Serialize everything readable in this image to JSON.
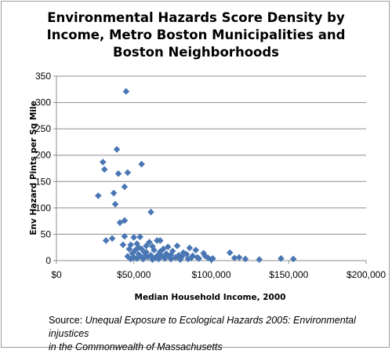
{
  "chart_data": {
    "type": "scatter",
    "title_lines": [
      "Environmental Hazards Score Density by",
      "Income, Metro Boston Municipalities and",
      "Boston Neighborhoods"
    ],
    "xlabel": "Median Household Income, 2000",
    "ylabel": "Env Hazard Pints per Sq Mile",
    "xlim": [
      0,
      200000
    ],
    "ylim": [
      0,
      350
    ],
    "x_ticks": [
      0,
      50000,
      100000,
      150000,
      200000
    ],
    "x_tick_labels": [
      "$0",
      "$50,000",
      "$100,000",
      "$150,000",
      "$200,000"
    ],
    "y_ticks": [
      0,
      50,
      100,
      150,
      200,
      250,
      300,
      350
    ],
    "y_tick_labels": [
      "0",
      "50",
      "100",
      "150",
      "200",
      "250",
      "300",
      "350"
    ],
    "grid": "horizontal",
    "marker_color": "#4a77b4",
    "points": [
      [
        45000,
        321
      ],
      [
        39000,
        211
      ],
      [
        30000,
        187
      ],
      [
        55000,
        183
      ],
      [
        31000,
        173
      ],
      [
        46000,
        167
      ],
      [
        40000,
        165
      ],
      [
        44000,
        140
      ],
      [
        37000,
        128
      ],
      [
        27000,
        123
      ],
      [
        38000,
        107
      ],
      [
        61000,
        92
      ],
      [
        44000,
        76
      ],
      [
        41000,
        72
      ],
      [
        44000,
        46
      ],
      [
        36000,
        42
      ],
      [
        32000,
        38
      ],
      [
        54000,
        45
      ],
      [
        50000,
        44
      ],
      [
        65000,
        38
      ],
      [
        60000,
        35
      ],
      [
        67000,
        38
      ],
      [
        48000,
        30
      ],
      [
        52000,
        32
      ],
      [
        43000,
        30
      ],
      [
        58000,
        28
      ],
      [
        62000,
        27
      ],
      [
        72000,
        26
      ],
      [
        78000,
        28
      ],
      [
        86000,
        24
      ],
      [
        47000,
        22
      ],
      [
        51000,
        20
      ],
      [
        55000,
        22
      ],
      [
        63000,
        20
      ],
      [
        69000,
        22
      ],
      [
        75000,
        18
      ],
      [
        82000,
        15
      ],
      [
        90000,
        20
      ],
      [
        95000,
        14
      ],
      [
        112000,
        15
      ],
      [
        49000,
        14
      ],
      [
        53000,
        12
      ],
      [
        57000,
        15
      ],
      [
        66000,
        12
      ],
      [
        71000,
        13
      ],
      [
        79000,
        10
      ],
      [
        84000,
        12
      ],
      [
        88000,
        9
      ],
      [
        96000,
        9
      ],
      [
        46000,
        8
      ],
      [
        50000,
        6
      ],
      [
        54000,
        9
      ],
      [
        59000,
        7
      ],
      [
        61000,
        10
      ],
      [
        64000,
        6
      ],
      [
        68000,
        9
      ],
      [
        73000,
        8
      ],
      [
        77000,
        6
      ],
      [
        81000,
        7
      ],
      [
        87000,
        5
      ],
      [
        91000,
        6
      ],
      [
        98000,
        5
      ],
      [
        101000,
        4
      ],
      [
        115000,
        5
      ],
      [
        122000,
        3
      ],
      [
        48000,
        3
      ],
      [
        52000,
        4
      ],
      [
        56000,
        3
      ],
      [
        62000,
        2
      ],
      [
        66000,
        3
      ],
      [
        70000,
        4
      ],
      [
        74000,
        3
      ],
      [
        80000,
        2
      ],
      [
        85000,
        3
      ],
      [
        100000,
        2
      ],
      [
        131000,
        2
      ],
      [
        145000,
        4
      ],
      [
        153000,
        3
      ],
      [
        58000,
        16
      ],
      [
        67000,
        17
      ],
      [
        53000,
        25
      ],
      [
        57000,
        8
      ],
      [
        74000,
        11
      ],
      [
        92000,
        4
      ],
      [
        118000,
        6
      ]
    ]
  },
  "source": {
    "prefix": "Source: ",
    "line1": "Unequal Exposure to Ecological Hazards 2005: Environmental injustices",
    "line2": "in the Commonwealth of Massachusetts"
  }
}
